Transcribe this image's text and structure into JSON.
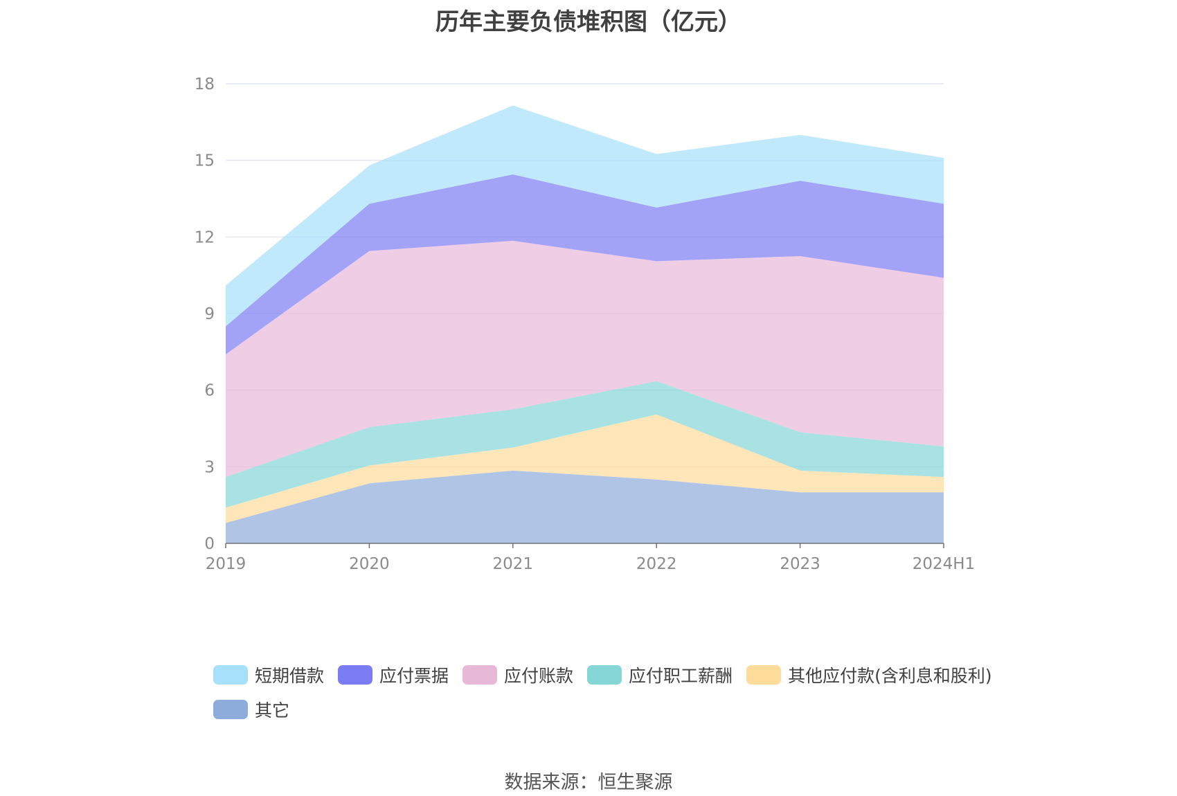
{
  "title": "历年主要负债堆积图（亿元）",
  "source": "数据来源：恒生聚源",
  "chart_data": {
    "type": "area",
    "stacked": true,
    "categories": [
      "2019",
      "2020",
      "2021",
      "2022",
      "2023",
      "2024H1"
    ],
    "ylim": [
      0,
      18
    ],
    "yticks": [
      0,
      3,
      6,
      9,
      12,
      15,
      18
    ],
    "grid": true,
    "legend_position": "bottom",
    "series": [
      {
        "name": "其它",
        "color": "#8eacdb",
        "values": [
          0.8,
          2.35,
          2.85,
          2.5,
          2.0,
          2.0
        ]
      },
      {
        "name": "其他应付款(含利息和股利)",
        "color": "#ffdc9a",
        "values": [
          0.6,
          0.7,
          0.9,
          2.55,
          0.85,
          0.6
        ]
      },
      {
        "name": "应付职工薪酬",
        "color": "#85d6d6",
        "values": [
          1.2,
          1.5,
          1.5,
          1.3,
          1.5,
          1.2
        ]
      },
      {
        "name": "应付账款",
        "color": "#e8b8d8",
        "values": [
          4.8,
          6.9,
          6.6,
          4.7,
          6.9,
          6.6
        ]
      },
      {
        "name": "应付票据",
        "color": "#7b7cf4",
        "values": [
          1.1,
          1.85,
          2.6,
          2.1,
          2.95,
          2.9
        ]
      },
      {
        "name": "短期借款",
        "color": "#a6e0fb",
        "values": [
          1.6,
          1.5,
          2.7,
          2.1,
          1.8,
          1.8
        ]
      }
    ],
    "legend_order": [
      "短期借款",
      "应付票据",
      "应付账款",
      "应付职工薪酬",
      "其他应付款(含利息和股利)",
      "其它"
    ]
  }
}
